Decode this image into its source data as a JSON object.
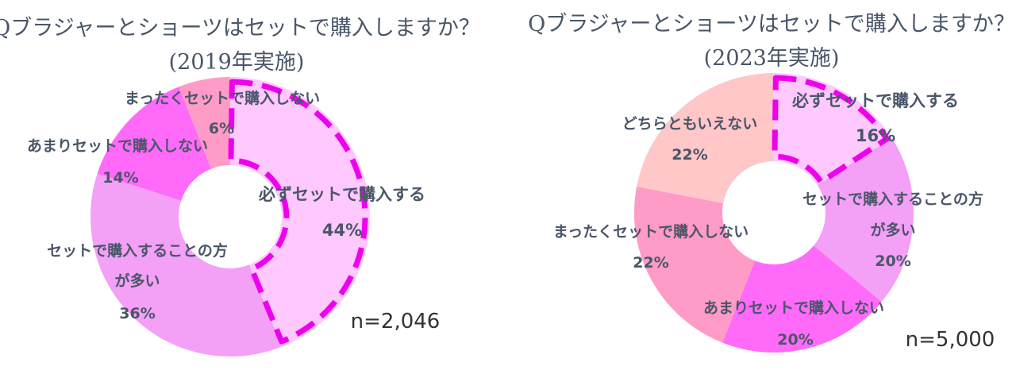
{
  "chart_data": [
    {
      "type": "pie",
      "title": "Qブラジャーとショーツはセットで購入しますか？",
      "subtitle": "(2019年実施)",
      "sample_size": "n=2,046",
      "slices": [
        {
          "label": "必ずセットで購入する",
          "value": 44,
          "display": "44%",
          "color": "#ffc8ff",
          "highlight": true
        },
        {
          "label": "セットで購入することの方が多い",
          "label_lines": [
            "セットで購入することの方",
            "が多い"
          ],
          "value": 36,
          "display": "36%",
          "color": "#f3a0f6"
        },
        {
          "label": "あまりセットで購入しない",
          "value": 14,
          "display": "14%",
          "color": "#ff6af8"
        },
        {
          "label": "まったくセットで購入しない",
          "value": 6,
          "display": "6%",
          "color": "#ff9bc7"
        }
      ]
    },
    {
      "type": "pie",
      "title": "Qブラジャーとショーツはセットで購入しますか？",
      "subtitle": "(2023年実施)",
      "sample_size": "n=5,000",
      "slices": [
        {
          "label": "必ずセットで購入する",
          "value": 16,
          "display": "16%",
          "color": "#ffc8ff",
          "highlight": true
        },
        {
          "label": "セットで購入することの方が多い",
          "label_lines": [
            "セットで購入することの方",
            "が多い"
          ],
          "value": 20,
          "display": "20%",
          "color": "#f3a0f6"
        },
        {
          "label": "あまりセットで購入しない",
          "value": 20,
          "display": "20%",
          "color": "#ff6af8"
        },
        {
          "label": "まったくセットで購入しない",
          "value": 22,
          "display": "22%",
          "color": "#ff9bc7"
        },
        {
          "label": "どちらともいえない",
          "value": 22,
          "display": "22%",
          "color": "#ffc7c7"
        }
      ]
    }
  ],
  "colors": {
    "highlight_outline": "#ee00ee",
    "text": "#4a5668"
  }
}
